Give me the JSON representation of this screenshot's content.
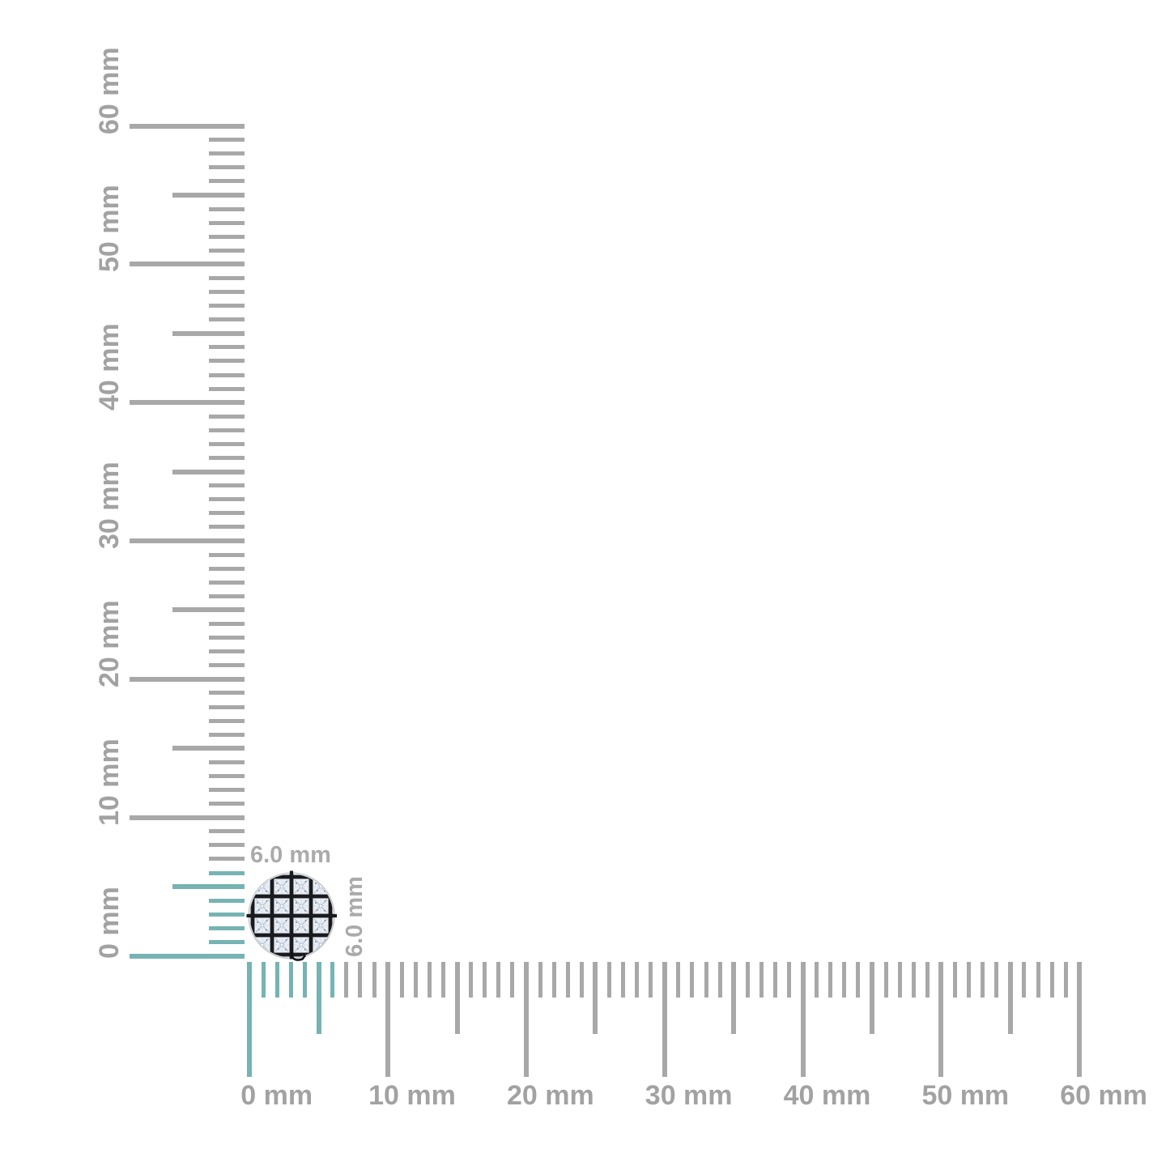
{
  "page": {
    "background": "#ffffff"
  },
  "colors": {
    "tick_gray": "#a8a8a8",
    "tick_highlight_teal": "#76b3b3",
    "ruler_label_gray": "#a2a2a2",
    "dimension_label_gray": "#ababab",
    "grid_black": "#1a1b1f",
    "diamond_base": "#e9edf4",
    "diamond_facet": "#aebdcf",
    "metal_rim": "#c6c8cd"
  },
  "rulers": {
    "unit": "mm",
    "min_mm": 0,
    "max_mm": 60,
    "minor_step_mm": 1,
    "medium_step_mm": 5,
    "major_step_mm": 10,
    "highlighted_range_mm": [
      0,
      6
    ],
    "vertical_labels": [
      "0 mm",
      "10 mm",
      "20 mm",
      "30 mm",
      "40 mm",
      "50 mm",
      "60 mm"
    ],
    "horizontal_labels": [
      "0 mm",
      "10 mm",
      "20 mm",
      "30 mm",
      "40 mm",
      "50 mm",
      "60 mm"
    ]
  },
  "item": {
    "width_label": "6.0 mm",
    "height_label": "6.0 mm",
    "grid_rows": 4,
    "grid_cols": 4
  }
}
